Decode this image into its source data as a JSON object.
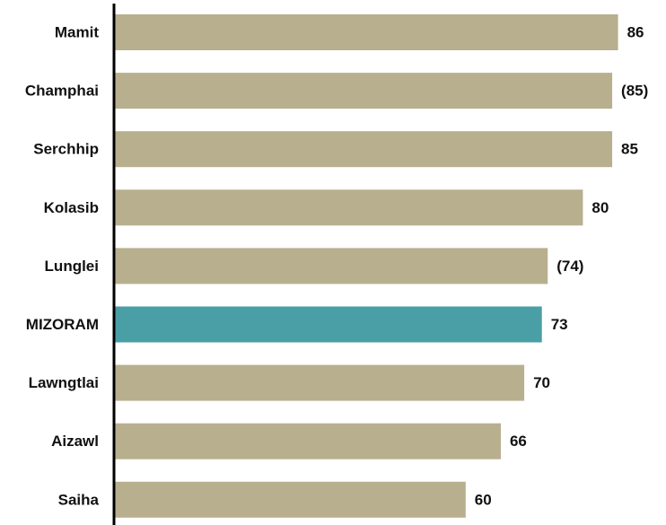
{
  "chart_data": {
    "type": "bar",
    "orientation": "horizontal",
    "title": "",
    "xlabel": "",
    "ylabel": "",
    "xlim": [
      0,
      100
    ],
    "grid": false,
    "legend": "none",
    "categories": [
      "Mamit",
      "Champhai",
      "Serchhip",
      "Kolasib",
      "Lunglei",
      "MIZORAM",
      "Lawngtlai",
      "Aizawl",
      "Saiha"
    ],
    "values": [
      86,
      85,
      85,
      80,
      74,
      73,
      70,
      66,
      60
    ],
    "value_labels": [
      "86",
      "(85)",
      "85",
      "80",
      "(74)",
      "73",
      "70",
      "66",
      "60"
    ],
    "highlight_category": "MIZORAM",
    "colors": {
      "bar": "#b8af8e",
      "highlight": "#4a9ea6",
      "axis": "#000000"
    }
  }
}
